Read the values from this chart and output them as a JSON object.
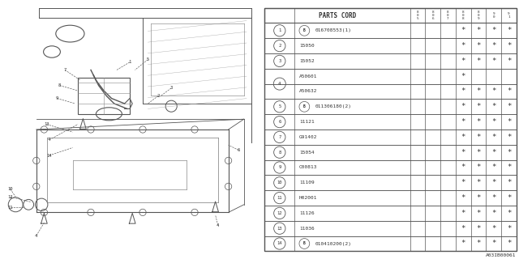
{
  "title": "",
  "part_number": "A03IB00061",
  "header": "PARTS CORD",
  "col_headers": [
    "8\n0\n5",
    "8\n0\n6",
    "8\n0\n7",
    "8\n0\n8",
    "8\n0\n9",
    "9\n0",
    "9\n1"
  ],
  "rows": [
    {
      "num": "1",
      "b": true,
      "code": "016708553(1)",
      "stars": [
        false,
        false,
        false,
        true,
        true,
        true,
        true
      ]
    },
    {
      "num": "2",
      "b": false,
      "code": "15050",
      "stars": [
        false,
        false,
        false,
        true,
        true,
        true,
        true
      ]
    },
    {
      "num": "3",
      "b": false,
      "code": "15052",
      "stars": [
        false,
        false,
        false,
        true,
        true,
        true,
        true
      ]
    },
    {
      "num": "4a",
      "b": false,
      "code": "A50601",
      "stars": [
        false,
        false,
        false,
        true,
        false,
        false,
        false
      ]
    },
    {
      "num": "4b",
      "b": false,
      "code": "A50632",
      "stars": [
        false,
        false,
        false,
        true,
        true,
        true,
        true
      ]
    },
    {
      "num": "5",
      "b": true,
      "code": "011306180(2)",
      "stars": [
        false,
        false,
        false,
        true,
        true,
        true,
        true
      ]
    },
    {
      "num": "6",
      "b": false,
      "code": "11121",
      "stars": [
        false,
        false,
        false,
        true,
        true,
        true,
        true
      ]
    },
    {
      "num": "7",
      "b": false,
      "code": "G91402",
      "stars": [
        false,
        false,
        false,
        true,
        true,
        true,
        true
      ]
    },
    {
      "num": "8",
      "b": false,
      "code": "15054",
      "stars": [
        false,
        false,
        false,
        true,
        true,
        true,
        true
      ]
    },
    {
      "num": "9",
      "b": false,
      "code": "C00813",
      "stars": [
        false,
        false,
        false,
        true,
        true,
        true,
        true
      ]
    },
    {
      "num": "10",
      "b": false,
      "code": "11109",
      "stars": [
        false,
        false,
        false,
        true,
        true,
        true,
        true
      ]
    },
    {
      "num": "11",
      "b": false,
      "code": "H02001",
      "stars": [
        false,
        false,
        false,
        true,
        true,
        true,
        true
      ]
    },
    {
      "num": "12",
      "b": false,
      "code": "11126",
      "stars": [
        false,
        false,
        false,
        true,
        true,
        true,
        true
      ]
    },
    {
      "num": "13",
      "b": false,
      "code": "11036",
      "stars": [
        false,
        false,
        false,
        true,
        true,
        true,
        true
      ]
    },
    {
      "num": "14",
      "b": true,
      "code": "010410200(2)",
      "stars": [
        false,
        false,
        false,
        true,
        true,
        true,
        true
      ]
    }
  ],
  "line_color": "#555555",
  "text_color": "#333333"
}
